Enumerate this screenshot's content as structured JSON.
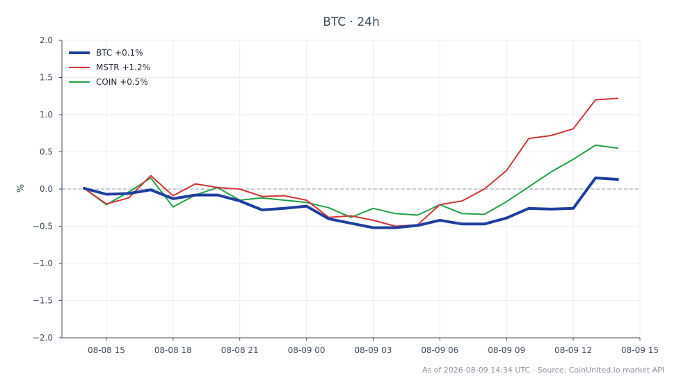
{
  "chart_data": {
    "type": "line",
    "title": "BTC · 24h",
    "ylabel": "%",
    "xlabel": "",
    "ylim": [
      -2.0,
      2.0
    ],
    "yticks": [
      -2.0,
      -1.5,
      -1.0,
      -0.5,
      0.0,
      0.5,
      1.0,
      1.5,
      2.0
    ],
    "ytick_labels": [
      "−2.0",
      "−1.5",
      "−1.0",
      "−0.5",
      "0.0",
      "0.5",
      "1.0",
      "1.5",
      "2.0"
    ],
    "xlim": [
      "2026-08-08 13:00",
      "2026-08-09 15:00"
    ],
    "xticks": [
      "2026-08-08 15:00",
      "2026-08-08 18:00",
      "2026-08-08 21:00",
      "2026-08-09 00:00",
      "2026-08-09 03:00",
      "2026-08-09 06:00",
      "2026-08-09 09:00",
      "2026-08-09 12:00",
      "2026-08-09 15:00"
    ],
    "xtick_labels": [
      "08-08 15",
      "08-08 18",
      "08-08 21",
      "08-09 00",
      "08-09 03",
      "08-09 06",
      "08-09 09",
      "08-09 12",
      "08-09 15"
    ],
    "zero_line": true,
    "grid": true,
    "legend_position": "top-left",
    "x": [
      "2026-08-08 14:00",
      "2026-08-08 15:00",
      "2026-08-08 16:00",
      "2026-08-08 17:00",
      "2026-08-08 18:00",
      "2026-08-08 19:00",
      "2026-08-08 20:00",
      "2026-08-08 21:00",
      "2026-08-08 22:00",
      "2026-08-08 23:00",
      "2026-08-09 00:00",
      "2026-08-09 01:00",
      "2026-08-09 02:00",
      "2026-08-09 03:00",
      "2026-08-09 04:00",
      "2026-08-09 05:00",
      "2026-08-09 06:00",
      "2026-08-09 07:00",
      "2026-08-09 08:00",
      "2026-08-09 09:00",
      "2026-08-09 10:00",
      "2026-08-09 11:00",
      "2026-08-09 12:00",
      "2026-08-09 13:00",
      "2026-08-09 14:00"
    ],
    "series": [
      {
        "name": "BTC +0.1%",
        "color": "#1f3f9e",
        "width": 4,
        "values": [
          0.01,
          -0.07,
          -0.06,
          -0.01,
          -0.13,
          -0.08,
          -0.08,
          -0.16,
          -0.28,
          -0.26,
          -0.23,
          -0.4,
          -0.46,
          -0.52,
          -0.52,
          -0.49,
          -0.42,
          -0.47,
          -0.47,
          -0.39,
          -0.26,
          -0.27,
          -0.26,
          0.15,
          0.13
        ]
      },
      {
        "name": "MSTR +1.2%",
        "color": "#d13535",
        "width": 2,
        "values": [
          0.01,
          -0.2,
          -0.12,
          0.18,
          -0.09,
          0.07,
          0.02,
          0.0,
          -0.1,
          -0.09,
          -0.15,
          -0.38,
          -0.36,
          -0.42,
          -0.5,
          -0.48,
          -0.21,
          -0.16,
          0.0,
          0.25,
          0.68,
          0.72,
          0.81,
          1.2,
          1.22
        ]
      },
      {
        "name": "COIN +0.5%",
        "color": "#21a045",
        "width": 2,
        "values": [
          0.01,
          -0.21,
          -0.04,
          0.15,
          -0.24,
          -0.08,
          0.02,
          -0.15,
          -0.12,
          -0.15,
          -0.18,
          -0.25,
          -0.38,
          -0.26,
          -0.33,
          -0.35,
          -0.21,
          -0.33,
          -0.34,
          -0.17,
          0.03,
          0.23,
          0.4,
          0.59,
          0.55
        ]
      }
    ]
  },
  "footer": {
    "text": "As of 2026-08-09 14:34 UTC · Source: CoinUnited.io market API"
  }
}
